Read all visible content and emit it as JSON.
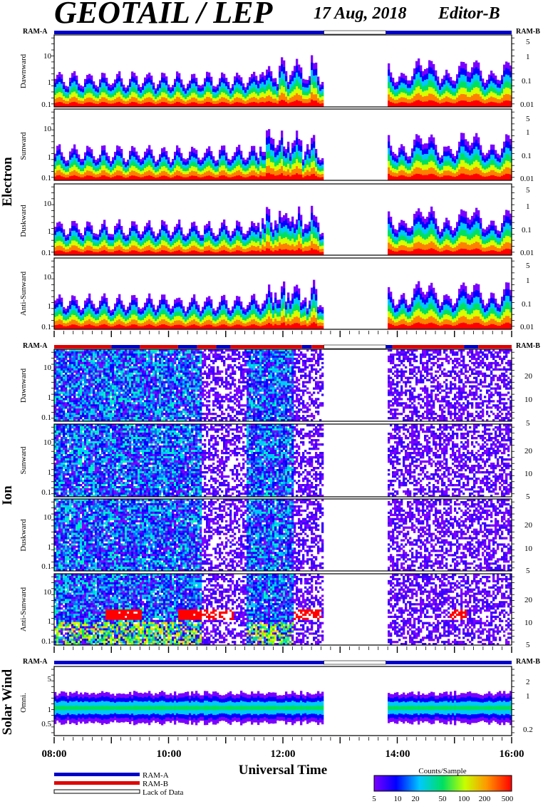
{
  "title": "GEOTAIL / LEP",
  "date": "17 Aug, 2018",
  "editor": "Editor-B",
  "xlabel": "Universal Time",
  "x_ticks": [
    "08:00",
    "10:00",
    "12:00",
    "14:00",
    "16:00"
  ],
  "colorbar": {
    "title": "Counts/Sample",
    "ticks": [
      "5",
      "10",
      "20",
      "50",
      "100",
      "200",
      "500"
    ]
  },
  "legend": {
    "ram_a": "RAM-A",
    "ram_b": "RAM-B",
    "lack": "Lack of Data",
    "colors": {
      "ram_a": "#0000c8",
      "ram_b": "#e00000"
    }
  },
  "chart_data": {
    "type": "heatmap",
    "x_range": [
      "08:00",
      "16:00"
    ],
    "data_gap": [
      "12:43",
      "13:48"
    ],
    "groups": [
      {
        "name": "Electron",
        "ram_left": "RAM-A",
        "ram_right": "RAM-B",
        "ram_bar": [
          {
            "from": "08:00",
            "to": "12:43",
            "mode": "RAM-A"
          },
          {
            "from": "12:43",
            "to": "13:48",
            "mode": "none"
          },
          {
            "from": "13:48",
            "to": "16:00",
            "mode": "RAM-A"
          }
        ],
        "panels": [
          {
            "name": "Dawnward",
            "left_ticks": [
              "10",
              "1",
              "0.1"
            ],
            "right_ticks": [
              "5",
              "1",
              "0.1",
              "0.01"
            ]
          },
          {
            "name": "Sunward",
            "left_ticks": [
              "10",
              "1",
              "0.1"
            ],
            "right_ticks": [
              "5",
              "1",
              "0.1",
              "0.01"
            ]
          },
          {
            "name": "Duskward",
            "left_ticks": [
              "10",
              "1",
              "0.1"
            ],
            "right_ticks": [
              "5",
              "1",
              "0.1",
              "0.01"
            ]
          },
          {
            "name": "Anti-Sunward",
            "left_ticks": [
              "10",
              "1",
              "0.1"
            ],
            "right_ticks": [
              "5",
              "1",
              "0.1",
              "0.01"
            ]
          }
        ]
      },
      {
        "name": "Ion",
        "ram_left": "RAM-A",
        "ram_right": "RAM-B",
        "ram_bar": [
          {
            "from": "08:00",
            "to": "09:00",
            "mode": "RAM-B"
          },
          {
            "from": "09:00",
            "to": "09:30",
            "mode": "RAM-A"
          },
          {
            "from": "09:30",
            "to": "10:10",
            "mode": "RAM-B"
          },
          {
            "from": "10:10",
            "to": "10:30",
            "mode": "RAM-A"
          },
          {
            "from": "10:30",
            "to": "10:50",
            "mode": "RAM-B"
          },
          {
            "from": "10:50",
            "to": "11:05",
            "mode": "RAM-A"
          },
          {
            "from": "11:05",
            "to": "12:20",
            "mode": "RAM-B"
          },
          {
            "from": "12:20",
            "to": "12:30",
            "mode": "RAM-A"
          },
          {
            "from": "12:30",
            "to": "12:43",
            "mode": "RAM-B"
          },
          {
            "from": "12:43",
            "to": "13:48",
            "mode": "none"
          },
          {
            "from": "13:48",
            "to": "13:55",
            "mode": "RAM-A"
          },
          {
            "from": "13:55",
            "to": "15:10",
            "mode": "RAM-B"
          },
          {
            "from": "15:10",
            "to": "15:25",
            "mode": "RAM-A"
          },
          {
            "from": "15:25",
            "to": "16:00",
            "mode": "RAM-B"
          }
        ],
        "panels": [
          {
            "name": "Dawnward",
            "left_ticks": [
              "10",
              "1",
              "0.1"
            ],
            "right_ticks": [
              "20",
              "10",
              "5"
            ]
          },
          {
            "name": "Sunward",
            "left_ticks": [
              "10",
              "1",
              "0.1"
            ],
            "right_ticks": [
              "20",
              "10",
              "5"
            ]
          },
          {
            "name": "Duskward",
            "left_ticks": [
              "10",
              "1",
              "0.1"
            ],
            "right_ticks": [
              "20",
              "10",
              "5"
            ]
          },
          {
            "name": "Anti-Sunward",
            "left_ticks": [
              "10",
              "1",
              "0.1"
            ],
            "right_ticks": [
              "20",
              "10",
              "5"
            ]
          }
        ]
      },
      {
        "name": "Solar Wind",
        "ram_left": "RAM-A",
        "ram_right": "RAM-B",
        "ram_bar": [
          {
            "from": "08:00",
            "to": "12:43",
            "mode": "RAM-A"
          },
          {
            "from": "12:43",
            "to": "13:48",
            "mode": "none"
          },
          {
            "from": "13:48",
            "to": "16:00",
            "mode": "RAM-A"
          }
        ],
        "panels": [
          {
            "name": "Omni.",
            "left_ticks": [
              "5",
              "1",
              "0.5"
            ],
            "right_ticks": [
              "2",
              "1",
              "0.2"
            ]
          }
        ]
      }
    ]
  }
}
